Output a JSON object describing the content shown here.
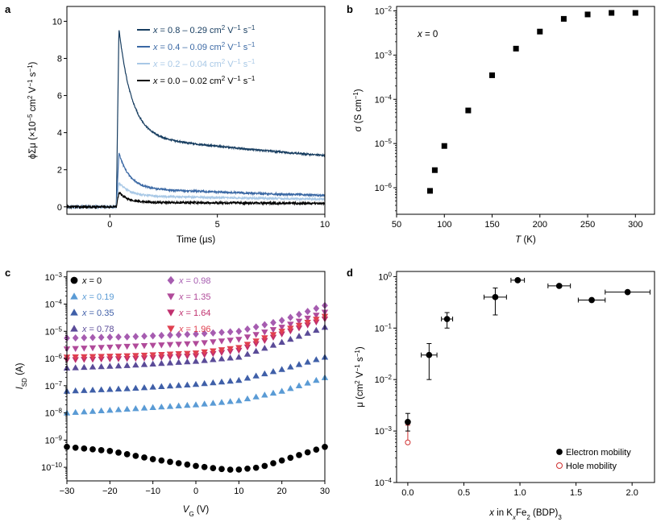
{
  "chart_data": [
    {
      "panel": "a",
      "type": "line",
      "xlabel": "Time (µs)",
      "ylabel_parts": [
        "ϕΣμ (×10",
        "−5",
        " cm",
        "2",
        " V",
        "−1",
        " s",
        "−1",
        ")"
      ],
      "xlim": [
        -2,
        10
      ],
      "ylim": [
        -0.4,
        10.8
      ],
      "xticks": [
        0,
        5,
        10
      ],
      "yticks": [
        0,
        2,
        4,
        6,
        8,
        10
      ],
      "legend": [
        {
          "x_label": "x",
          "text": " = 0.8 – 0.29 cm",
          "color": "#173d60"
        },
        {
          "x_label": "x",
          "text": " = 0.4 – 0.09 cm",
          "color": "#3a68a4"
        },
        {
          "x_label": "x",
          "text": " = 0.2 – 0.04 cm",
          "color": "#a8c8e6"
        },
        {
          "x_label": "x",
          "text": " = 0.0 – 0.02 cm",
          "color": "#000000"
        }
      ],
      "legend_units": [
        "2",
        " V",
        "−1",
        " s",
        "−1"
      ],
      "series": [
        {
          "name": "x = 0.8",
          "color": "#173d60",
          "onset": 0.3,
          "peak": 9.6,
          "a1": 5.8,
          "t1": 0.6,
          "a2": 3.8,
          "t2": 30
        },
        {
          "name": "x = 0.4",
          "color": "#3a68a4",
          "onset": 0.3,
          "peak": 2.9,
          "a1": 1.9,
          "t1": 0.5,
          "a2": 1.0,
          "t2": 20
        },
        {
          "name": "x = 0.2",
          "color": "#a8c8e6",
          "onset": 0.3,
          "peak": 1.3,
          "a1": 0.7,
          "t1": 0.5,
          "a2": 0.6,
          "t2": 25
        },
        {
          "name": "x = 0.0",
          "color": "#000000",
          "onset": 0.3,
          "peak": 0.8,
          "a1": 0.55,
          "t1": 0.4,
          "a2": 0.25,
          "t2": 30
        }
      ]
    },
    {
      "panel": "b",
      "type": "scatter",
      "yscale": "log",
      "annotation_var": "x",
      "annotation": " = 0",
      "xlabel_var": "T",
      "xlabel_unit": " (K)",
      "ylabel_parts": [
        "σ (S cm",
        "−1",
        ")"
      ],
      "xlim": [
        50,
        320
      ],
      "ylim_exp": [
        -6.6,
        -1.9
      ],
      "xticks": [
        50,
        100,
        150,
        200,
        250,
        300
      ],
      "yticks_exp": [
        -6,
        -5,
        -4,
        -3,
        -2
      ],
      "x": [
        85,
        90,
        100,
        125,
        150,
        175,
        200,
        225,
        250,
        275,
        300
      ],
      "y": [
        8.5e-07,
        2.5e-06,
        8.8e-06,
        5.6e-05,
        0.00035,
        0.0014,
        0.0034,
        0.0066,
        0.0083,
        0.009,
        0.009
      ]
    },
    {
      "panel": "c",
      "type": "scatter",
      "yscale": "log",
      "xlabel_var": "V",
      "xlabel_sub": "G",
      "xlabel_unit": " (V)",
      "ylabel_var": "I",
      "ylabel_sub": "SD",
      "ylabel_unit": " (A)",
      "xlim": [
        -30,
        30
      ],
      "ylim_exp": [
        -10.5,
        -2.8
      ],
      "xticks": [
        -30,
        -20,
        -10,
        0,
        10,
        20,
        30
      ],
      "yticks_exp": [
        -10,
        -9,
        -8,
        -7,
        -6,
        -5,
        -4,
        -3
      ],
      "legend": [
        {
          "x": "0",
          "color": "#000000",
          "marker": "circle"
        },
        {
          "x": "0.19",
          "color": "#5a9bd5",
          "marker": "tri-up"
        },
        {
          "x": "0.35",
          "color": "#3f5fa8",
          "marker": "tri-up"
        },
        {
          "x": "0.78",
          "color": "#5a4b98",
          "marker": "tri-up"
        },
        {
          "x": "0.98",
          "color": "#a65cb0",
          "marker": "diamond"
        },
        {
          "x": "1.35",
          "color": "#b04a9a",
          "marker": "tri-down"
        },
        {
          "x": "1.64",
          "color": "#c0306e",
          "marker": "tri-down"
        },
        {
          "x": "1.96",
          "color": "#e04050",
          "marker": "tri-down"
        }
      ],
      "series": [
        {
          "name": "x = 0",
          "color": "#000000",
          "marker": "circle",
          "knots": [
            [
              -30,
              -9.25
            ],
            [
              -20,
              -9.4
            ],
            [
              -10,
              -9.7
            ],
            [
              0,
              -9.95
            ],
            [
              5,
              -10.05
            ],
            [
              9,
              -10.1
            ],
            [
              15,
              -10.0
            ],
            [
              20,
              -9.75
            ],
            [
              30,
              -9.25
            ]
          ]
        },
        {
          "name": "x = 0.19",
          "color": "#5a9bd5",
          "marker": "tri-up",
          "knots": [
            [
              -30,
              -8.0
            ],
            [
              -15,
              -7.85
            ],
            [
              0,
              -7.7
            ],
            [
              10,
              -7.55
            ],
            [
              20,
              -7.2
            ],
            [
              30,
              -6.7
            ]
          ]
        },
        {
          "name": "x = 0.35",
          "color": "#3f5fa8",
          "marker": "tri-up",
          "knots": [
            [
              -30,
              -7.2
            ],
            [
              -15,
              -7.1
            ],
            [
              0,
              -6.95
            ],
            [
              10,
              -6.8
            ],
            [
              20,
              -6.4
            ],
            [
              30,
              -5.95
            ]
          ]
        },
        {
          "name": "x = 0.78",
          "color": "#5a4b98",
          "marker": "tri-up",
          "knots": [
            [
              -30,
              -6.35
            ],
            [
              -15,
              -6.25
            ],
            [
              0,
              -6.1
            ],
            [
              10,
              -5.95
            ],
            [
              20,
              -5.4
            ],
            [
              30,
              -4.85
            ]
          ]
        },
        {
          "name": "x = 0.98",
          "color": "#a65cb0",
          "marker": "diamond",
          "knots": [
            [
              -30,
              -5.25
            ],
            [
              -15,
              -5.2
            ],
            [
              0,
              -5.1
            ],
            [
              10,
              -5.0
            ],
            [
              20,
              -4.6
            ],
            [
              30,
              -4.05
            ]
          ]
        },
        {
          "name": "x = 1.35",
          "color": "#b04a9a",
          "marker": "tri-down",
          "knots": [
            [
              -30,
              -5.65
            ],
            [
              -15,
              -5.55
            ],
            [
              0,
              -5.45
            ],
            [
              10,
              -5.3
            ],
            [
              20,
              -4.85
            ],
            [
              30,
              -4.3
            ]
          ]
        },
        {
          "name": "x = 1.64",
          "color": "#c0306e",
          "marker": "tri-down",
          "knots": [
            [
              -30,
              -6.05
            ],
            [
              -15,
              -6.0
            ],
            [
              0,
              -5.9
            ],
            [
              10,
              -5.7
            ],
            [
              20,
              -5.1
            ],
            [
              30,
              -4.55
            ]
          ]
        },
        {
          "name": "x = 1.96",
          "color": "#e04050",
          "marker": "tri-down",
          "knots": [
            [
              -30,
              -5.95
            ],
            [
              -15,
              -5.9
            ],
            [
              0,
              -5.8
            ],
            [
              10,
              -5.6
            ],
            [
              20,
              -5.0
            ],
            [
              30,
              -4.45
            ]
          ]
        }
      ]
    },
    {
      "panel": "d",
      "type": "scatter",
      "yscale": "log",
      "xlabel_parts": [
        "x",
        " in K",
        "x",
        "Fe",
        "2",
        " (BDP)",
        "3"
      ],
      "ylabel_parts": [
        "μ (cm",
        "2",
        " V",
        "−1",
        " s",
        "−1",
        ")"
      ],
      "xlim": [
        -0.1,
        2.2
      ],
      "ylim_exp": [
        -4,
        0.1
      ],
      "xticks": [
        0.0,
        0.5,
        1.0,
        1.5,
        2.0
      ],
      "xtick_labels": [
        "0.0",
        "0.5",
        "1.0",
        "1.5",
        "2.0"
      ],
      "yticks_exp": [
        -4,
        -3,
        -2,
        -1,
        0
      ],
      "legend": [
        {
          "label": "Electron mobility",
          "color": "#000000",
          "marker": "filled-circle"
        },
        {
          "label": "Hole mobility",
          "color": "#d03030",
          "marker": "open-circle"
        }
      ],
      "electron": [
        {
          "x": 0.0,
          "y": 0.0015,
          "ylo": 0.001,
          "yhi": 0.0022,
          "xerr": 0
        },
        {
          "x": 0.19,
          "y": 0.03,
          "ylo": 0.01,
          "yhi": 0.05,
          "xerr": 0.07
        },
        {
          "x": 0.35,
          "y": 0.15,
          "ylo": 0.1,
          "yhi": 0.2,
          "xerr": 0.05
        },
        {
          "x": 0.78,
          "y": 0.4,
          "ylo": 0.18,
          "yhi": 0.6,
          "xerr": 0.1
        },
        {
          "x": 0.98,
          "y": 0.85,
          "ylo": 0.85,
          "yhi": 0.85,
          "xerr": 0.06
        },
        {
          "x": 1.35,
          "y": 0.66,
          "ylo": 0.66,
          "yhi": 0.66,
          "xerr": 0.1
        },
        {
          "x": 1.64,
          "y": 0.35,
          "ylo": 0.35,
          "yhi": 0.35,
          "xerr": 0.12
        },
        {
          "x": 1.96,
          "y": 0.5,
          "ylo": 0.5,
          "yhi": 0.5,
          "xerr": 0.2
        }
      ],
      "hole": [
        {
          "x": 0.0,
          "y": 0.0006,
          "ylo": 0.0006,
          "yhi": 0.0013
        }
      ]
    }
  ]
}
